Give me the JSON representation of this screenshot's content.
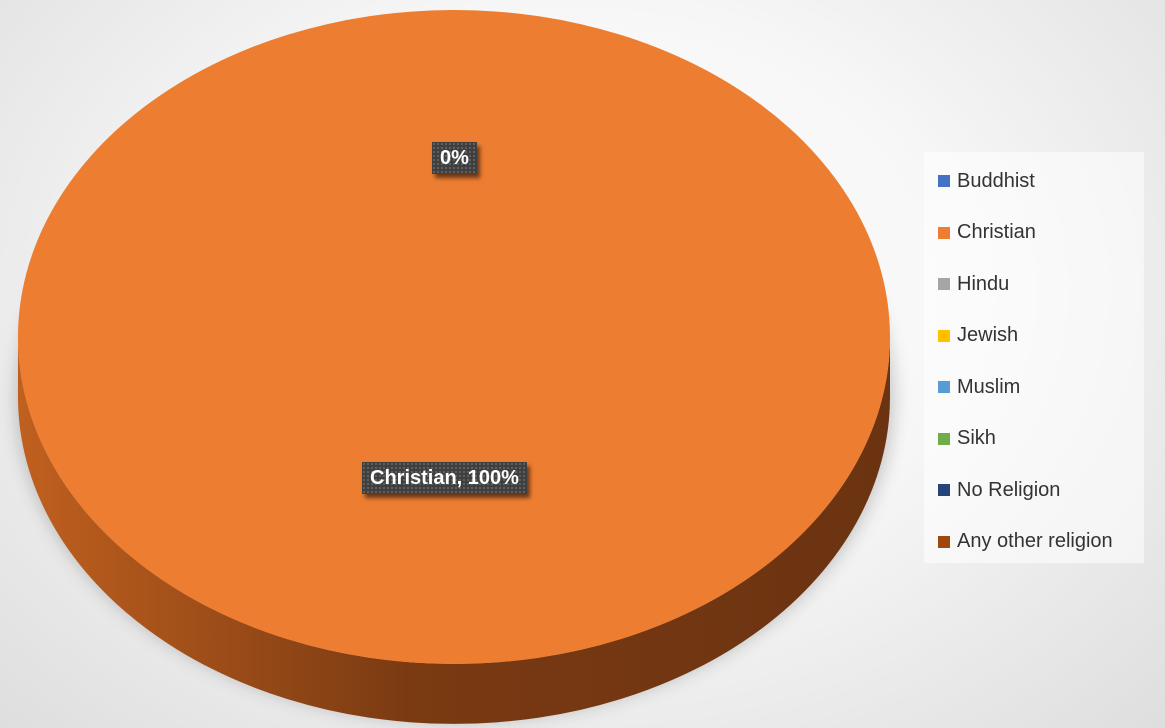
{
  "chart_data": {
    "type": "pie",
    "style": "3d",
    "legend_position": "right",
    "categories": [
      "Buddhist",
      "Christian",
      "Hindu",
      "Jewish",
      "Muslim",
      "Sikh",
      "No Religion",
      "Any other religion"
    ],
    "values": [
      0,
      100,
      0,
      0,
      0,
      0,
      0,
      0
    ],
    "unit": "%",
    "colors": [
      "#4472c4",
      "#ed7d31",
      "#a5a5a5",
      "#ffc000",
      "#5b9bd5",
      "#70ad47",
      "#264478",
      "#9e480e"
    ],
    "data_labels": {
      "zero": "0%",
      "christian": "Christian, 100%"
    },
    "side_color_light": "#c0601f",
    "side_color_dark": "#6b3311"
  }
}
